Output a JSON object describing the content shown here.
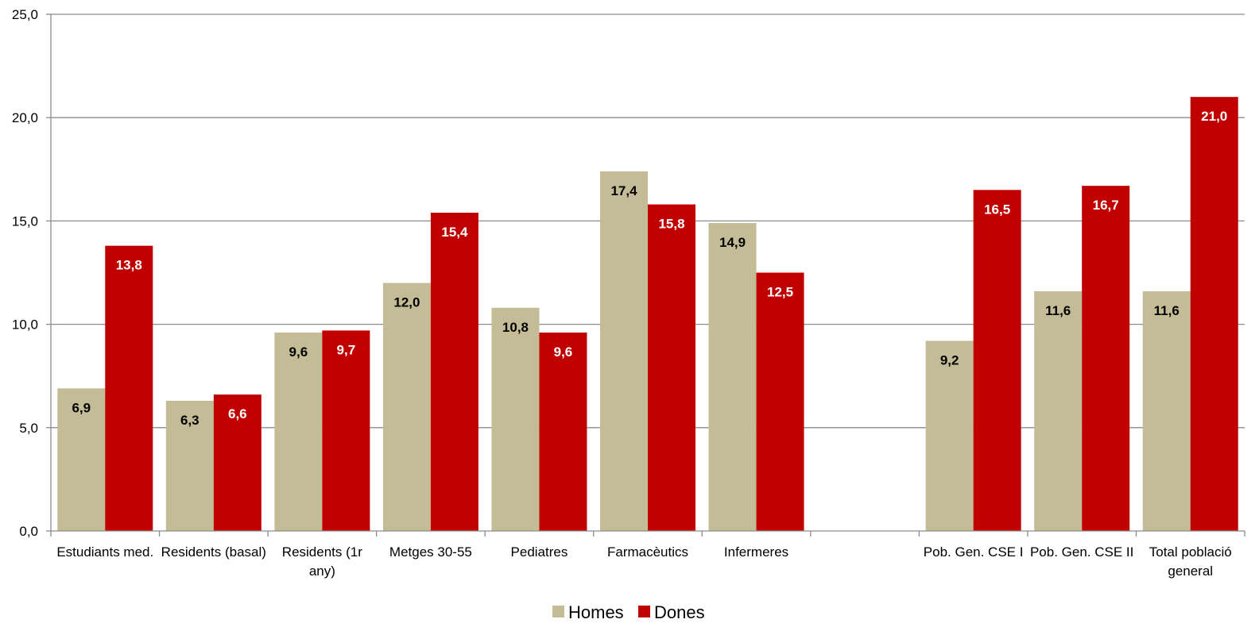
{
  "chart_data": {
    "type": "bar",
    "title": "",
    "xlabel": "",
    "ylabel": "",
    "ylim": [
      0,
      25
    ],
    "yticks": [
      "0,0",
      "5,0",
      "10,0",
      "15,0",
      "20,0",
      "25,0"
    ],
    "grid": true,
    "legend_position": "bottom",
    "categories": [
      [
        "Estudiants med."
      ],
      [
        "Residents (basal)"
      ],
      [
        "Residents (1r",
        "any)"
      ],
      [
        "Metges 30-55"
      ],
      [
        "Pediatres"
      ],
      [
        "Farmacèutics"
      ],
      [
        "Infermeres"
      ],
      [
        ""
      ],
      [
        "Pob. Gen. CSE I"
      ],
      [
        "Pob. Gen. CSE II"
      ],
      [
        "Total població",
        "general"
      ]
    ],
    "series": [
      {
        "name": "Homes",
        "color": "#c4bc96",
        "label_color": "#000000",
        "values": [
          6.9,
          6.3,
          9.6,
          12.0,
          10.8,
          17.4,
          14.9,
          null,
          9.2,
          11.6,
          11.6
        ],
        "labels": [
          "6,9",
          "6,3",
          "9,6",
          "12,0",
          "10,8",
          "17,4",
          "14,9",
          "",
          "9,2",
          "11,6",
          "11,6"
        ]
      },
      {
        "name": "Dones",
        "color": "#c00000",
        "label_color": "#ffffff",
        "values": [
          13.8,
          6.6,
          9.7,
          15.4,
          9.6,
          15.8,
          12.5,
          null,
          16.5,
          16.7,
          21.0
        ],
        "labels": [
          "13,8",
          "6,6",
          "9,7",
          "15,4",
          "9,6",
          "15,8",
          "12,5",
          "",
          "16,5",
          "16,7",
          "21,0"
        ]
      }
    ]
  }
}
